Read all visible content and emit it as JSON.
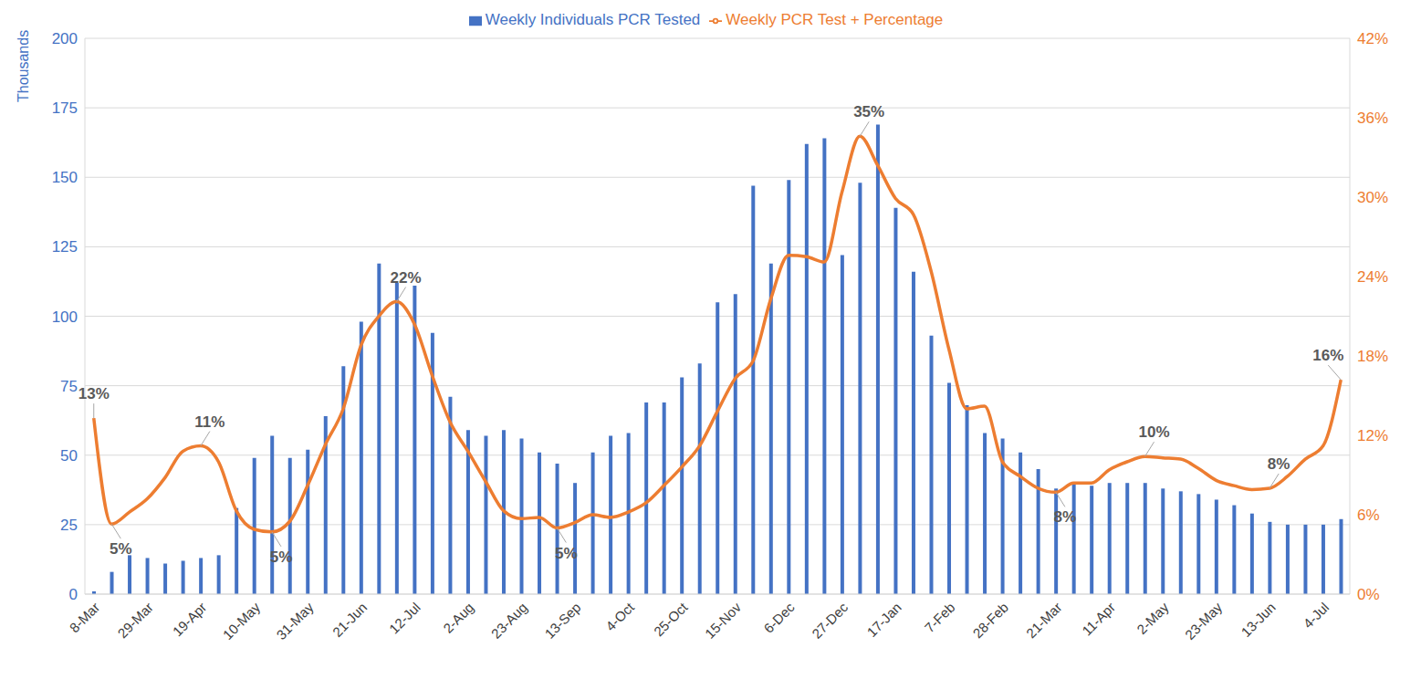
{
  "chart_data": {
    "type": "combo",
    "y_label": "Thousands",
    "categories": [
      "8-Mar",
      null,
      null,
      "29-Mar",
      null,
      null,
      "19-Apr",
      null,
      null,
      "10-May",
      null,
      null,
      "31-May",
      null,
      null,
      "21-Jun",
      null,
      null,
      "12-Jul",
      null,
      null,
      "2-Aug",
      null,
      null,
      "23-Aug",
      null,
      null,
      "13-Sep",
      null,
      null,
      "4-Oct",
      null,
      null,
      "25-Oct",
      null,
      null,
      "15-Nov",
      null,
      null,
      "6-Dec",
      null,
      null,
      "27-Dec",
      null,
      null,
      "17-Jan",
      null,
      null,
      "7-Feb",
      null,
      null,
      "28-Feb",
      null,
      null,
      "21-Mar",
      null,
      null,
      "11-Apr",
      null,
      null,
      "2-May",
      null,
      null,
      "23-May",
      null,
      null,
      "13-Jun",
      null,
      null,
      "4-Jul",
      null
    ],
    "series": [
      {
        "name": "Weekly Individuals PCR Tested",
        "type": "bar",
        "color": "#4472c4",
        "values": [
          1,
          8,
          14,
          13,
          11,
          12,
          13,
          14,
          31,
          49,
          57,
          49,
          52,
          64,
          82,
          98,
          119,
          112,
          111,
          94,
          71,
          59,
          57,
          59,
          56,
          51,
          47,
          40,
          51,
          57,
          58,
          69,
          69,
          78,
          83,
          105,
          108,
          147,
          119,
          149,
          162,
          164,
          122,
          148,
          169,
          139,
          116,
          93,
          76,
          68,
          58,
          56,
          51,
          45,
          38,
          40,
          39,
          40,
          40,
          40,
          38,
          37,
          36,
          34,
          32,
          29,
          26,
          25,
          25,
          25,
          27
        ]
      },
      {
        "name": "Weekly PCR Test + Percentage",
        "type": "line",
        "axis": "y2",
        "color": "#ed7d31",
        "values": [
          13.3,
          5.3,
          6.2,
          7.2,
          8.8,
          10.8,
          11.2,
          10.0,
          6.3,
          4.9,
          4.7,
          5.5,
          8.2,
          11.3,
          14.0,
          18.8,
          21.0,
          22.1,
          20.4,
          16.5,
          13.0,
          10.8,
          8.5,
          6.3,
          5.7,
          5.8,
          5.0,
          5.4,
          6.0,
          5.8,
          6.2,
          6.9,
          8.2,
          9.6,
          11.2,
          13.8,
          16.3,
          17.6,
          22.3,
          25.6,
          25.5,
          25.1,
          30.4,
          34.6,
          32.4,
          29.9,
          28.7,
          24.4,
          18.5,
          14.0,
          14.2,
          10.0,
          8.9,
          8.0,
          7.7,
          8.4,
          8.4,
          9.4,
          10.0,
          10.4,
          10.3,
          10.2,
          9.5,
          8.6,
          8.2,
          7.9,
          8.0,
          8.9,
          10.2,
          11.2,
          16.2
        ],
        "value_labels": [
          "13%",
          "5%",
          null,
          null,
          null,
          null,
          "11%",
          null,
          null,
          null,
          "5%",
          null,
          null,
          null,
          null,
          null,
          null,
          "22%",
          null,
          null,
          null,
          null,
          null,
          null,
          null,
          null,
          "5%",
          null,
          null,
          null,
          null,
          null,
          null,
          null,
          null,
          null,
          null,
          null,
          null,
          null,
          null,
          null,
          null,
          "35%",
          null,
          null,
          null,
          null,
          null,
          null,
          null,
          null,
          null,
          null,
          "8%",
          null,
          null,
          null,
          null,
          "10%",
          null,
          null,
          null,
          null,
          null,
          null,
          "8%",
          null,
          null,
          null,
          "16%"
        ]
      }
    ],
    "ylim": [
      0,
      200
    ],
    "yticks": [
      0,
      25,
      50,
      75,
      100,
      125,
      150,
      175,
      200
    ],
    "y2lim": [
      0,
      42
    ],
    "y2ticks": [
      {
        "value": 0,
        "label": "0%"
      },
      {
        "value": 6,
        "label": "6%"
      },
      {
        "value": 12,
        "label": "12%"
      },
      {
        "value": 18,
        "label": "18%"
      },
      {
        "value": 24,
        "label": "24%"
      },
      {
        "value": 30,
        "label": "30%"
      },
      {
        "value": 36,
        "label": "36%"
      },
      {
        "value": 42,
        "label": "42%"
      }
    ],
    "grid": true,
    "legend": "top"
  }
}
